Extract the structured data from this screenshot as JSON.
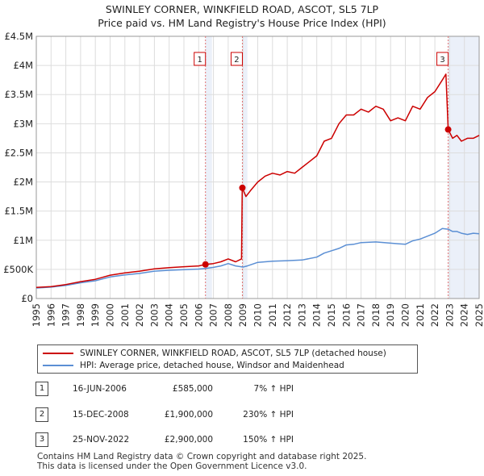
{
  "title_line1": "SWINLEY CORNER, WINKFIELD ROAD, ASCOT, SL5 7LP",
  "title_line2": "Price paid vs. HM Land Registry's House Price Index (HPI)",
  "chart_data": {
    "type": "line",
    "title": "SWINLEY CORNER, WINKFIELD ROAD, ASCOT, SL5 7LP — Price paid vs. HM Land Registry's House Price Index (HPI)",
    "xlim": [
      1995.0,
      2025.0
    ],
    "ylim": [
      0,
      4500000
    ],
    "x_ticks": [
      "1995",
      "1996",
      "1997",
      "1998",
      "1999",
      "2000",
      "2001",
      "2002",
      "2003",
      "2004",
      "2005",
      "2006",
      "2007",
      "2008",
      "2009",
      "2010",
      "2011",
      "2012",
      "2013",
      "2014",
      "2015",
      "2016",
      "2017",
      "2018",
      "2019",
      "2020",
      "2021",
      "2022",
      "2023",
      "2024",
      "2025"
    ],
    "y_ticks": [
      {
        "value": 0,
        "label": "£0"
      },
      {
        "value": 500000,
        "label": "£500K"
      },
      {
        "value": 1000000,
        "label": "£1M"
      },
      {
        "value": 1500000,
        "label": "£1.5M"
      },
      {
        "value": 2000000,
        "label": "£2M"
      },
      {
        "value": 2500000,
        "label": "£2.5M"
      },
      {
        "value": 3000000,
        "label": "£3M"
      },
      {
        "value": 3500000,
        "label": "£3.5M"
      },
      {
        "value": 4000000,
        "label": "£4M"
      },
      {
        "value": 4500000,
        "label": "£4.5M"
      }
    ],
    "shaded_regions": [
      [
        2006.45,
        2006.9
      ],
      [
        2008.95,
        2009.3
      ],
      [
        2022.9,
        2025.0
      ]
    ],
    "series": [
      {
        "name": "SWINLEY CORNER, WINKFIELD ROAD, ASCOT, SL5 7LP (detached house)",
        "color": "#cc0000",
        "x": [
          1995.0,
          1996.0,
          1997.0,
          1998.0,
          1999.0,
          2000.0,
          2001.0,
          2002.0,
          2003.0,
          2004.0,
          2005.0,
          2006.0,
          2006.46,
          2007.0,
          2007.5,
          2008.0,
          2008.5,
          2008.9,
          2008.95,
          2009.2,
          2009.5,
          2010.0,
          2010.5,
          2011.0,
          2011.5,
          2012.0,
          2012.5,
          2013.0,
          2013.5,
          2014.0,
          2014.5,
          2015.0,
          2015.5,
          2016.0,
          2016.5,
          2017.0,
          2017.5,
          2018.0,
          2018.5,
          2019.0,
          2019.5,
          2020.0,
          2020.5,
          2021.0,
          2021.5,
          2022.0,
          2022.5,
          2022.75,
          2022.9,
          2023.2,
          2023.5,
          2023.8,
          2024.2,
          2024.6,
          2025.0
        ],
        "values": [
          190000,
          205000,
          240000,
          290000,
          330000,
          400000,
          440000,
          470000,
          510000,
          530000,
          545000,
          560000,
          585000,
          600000,
          630000,
          680000,
          630000,
          680000,
          1900000,
          1750000,
          1850000,
          2000000,
          2100000,
          2150000,
          2120000,
          2180000,
          2150000,
          2250000,
          2350000,
          2450000,
          2700000,
          2750000,
          3000000,
          3150000,
          3150000,
          3250000,
          3200000,
          3300000,
          3250000,
          3050000,
          3100000,
          3050000,
          3300000,
          3250000,
          3450000,
          3550000,
          3750000,
          3850000,
          2900000,
          2750000,
          2800000,
          2700000,
          2750000,
          2750000,
          2800000
        ]
      },
      {
        "name": "HPI: Average price, detached house, Windsor and Maidenhead",
        "color": "#5b8fd4",
        "x": [
          1995.0,
          1996.0,
          1997.0,
          1998.0,
          1999.0,
          2000.0,
          2001.0,
          2002.0,
          2003.0,
          2004.0,
          2005.0,
          2006.0,
          2006.46,
          2007.0,
          2007.5,
          2008.0,
          2008.5,
          2009.0,
          2009.3,
          2010.0,
          2011.0,
          2012.0,
          2013.0,
          2014.0,
          2014.5,
          2015.0,
          2015.5,
          2016.0,
          2016.5,
          2017.0,
          2018.0,
          2019.0,
          2019.5,
          2020.0,
          2020.5,
          2021.0,
          2021.5,
          2022.0,
          2022.5,
          2022.9,
          2023.2,
          2023.5,
          2023.8,
          2024.2,
          2024.6,
          2025.0
        ],
        "values": [
          180000,
          195000,
          225000,
          270000,
          305000,
          370000,
          405000,
          430000,
          470000,
          485000,
          495000,
          505000,
          515000,
          535000,
          560000,
          600000,
          560000,
          540000,
          560000,
          620000,
          640000,
          650000,
          660000,
          710000,
          780000,
          820000,
          860000,
          920000,
          930000,
          960000,
          970000,
          950000,
          940000,
          930000,
          990000,
          1020000,
          1070000,
          1120000,
          1200000,
          1190000,
          1150000,
          1150000,
          1120000,
          1100000,
          1120000,
          1110000
        ]
      }
    ],
    "transactions": [
      {
        "label": "1",
        "x": 2006.46,
        "value": 585000
      },
      {
        "label": "2",
        "x": 2008.96,
        "value": 1900000
      },
      {
        "label": "3",
        "x": 2022.9,
        "value": 2900000
      }
    ]
  },
  "legend": {
    "property_label": "SWINLEY CORNER, WINKFIELD ROAD, ASCOT, SL5 7LP (detached house)",
    "hpi_label": "HPI: Average price, detached house, Windsor and Maidenhead",
    "property_color": "#cc0000",
    "hpi_color": "#5b8fd4"
  },
  "transactions_table": [
    {
      "num": "1",
      "date": "16-JUN-2006",
      "price": "£585,000",
      "hpi": "7% ↑ HPI"
    },
    {
      "num": "2",
      "date": "15-DEC-2008",
      "price": "£1,900,000",
      "hpi": "230% ↑ HPI"
    },
    {
      "num": "3",
      "date": "25-NOV-2022",
      "price": "£2,900,000",
      "hpi": "150% ↑ HPI"
    }
  ],
  "footer_line1": "Contains HM Land Registry data © Crown copyright and database right 2025.",
  "footer_line2": "This data is licensed under the Open Government Licence v3.0."
}
